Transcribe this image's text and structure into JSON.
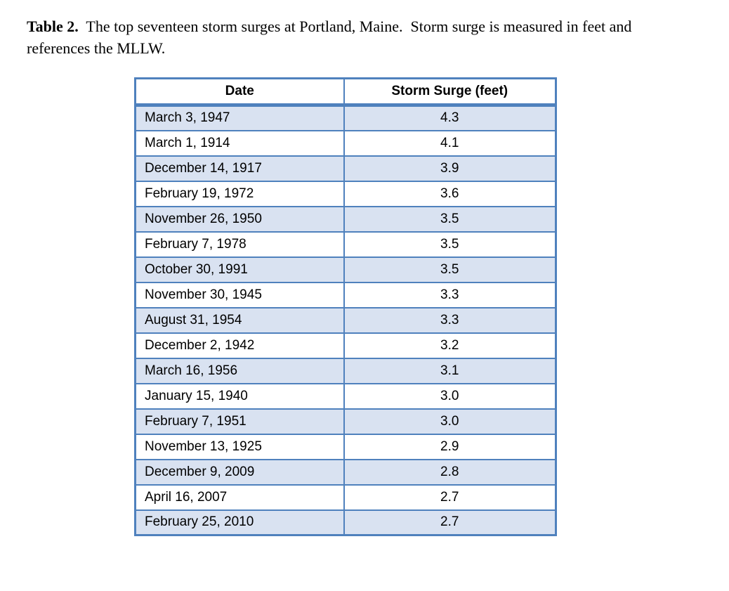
{
  "caption": {
    "label": "Table 2.",
    "text": "  The top seventeen storm surges at Portland, Maine.  Storm surge is measured in feet and references the MLLW."
  },
  "table": {
    "headers": [
      "Date",
      "Storm Surge (feet)"
    ],
    "rows": [
      {
        "date": "March 3, 1947",
        "surge": "4.3"
      },
      {
        "date": "March 1, 1914",
        "surge": "4.1"
      },
      {
        "date": "December 14, 1917",
        "surge": "3.9"
      },
      {
        "date": "February 19, 1972",
        "surge": "3.6"
      },
      {
        "date": "November 26, 1950",
        "surge": "3.5"
      },
      {
        "date": "February 7, 1978",
        "surge": "3.5"
      },
      {
        "date": "October 30, 1991",
        "surge": "3.5"
      },
      {
        "date": "November 30, 1945",
        "surge": "3.3"
      },
      {
        "date": "August 31, 1954",
        "surge": "3.3"
      },
      {
        "date": "December 2, 1942",
        "surge": "3.2"
      },
      {
        "date": "March 16, 1956",
        "surge": "3.1"
      },
      {
        "date": "January 15, 1940",
        "surge": "3.0"
      },
      {
        "date": "February 7, 1951",
        "surge": "3.0"
      },
      {
        "date": "November 13, 1925",
        "surge": "2.9"
      },
      {
        "date": "December 9, 2009",
        "surge": "2.8"
      },
      {
        "date": "April 16, 2007",
        "surge": "2.7"
      },
      {
        "date": "February 25, 2010",
        "surge": "2.7"
      }
    ]
  },
  "colors": {
    "table_border": "#4F81BD",
    "row_shading": "#D9E2F1",
    "text": "#000000"
  }
}
